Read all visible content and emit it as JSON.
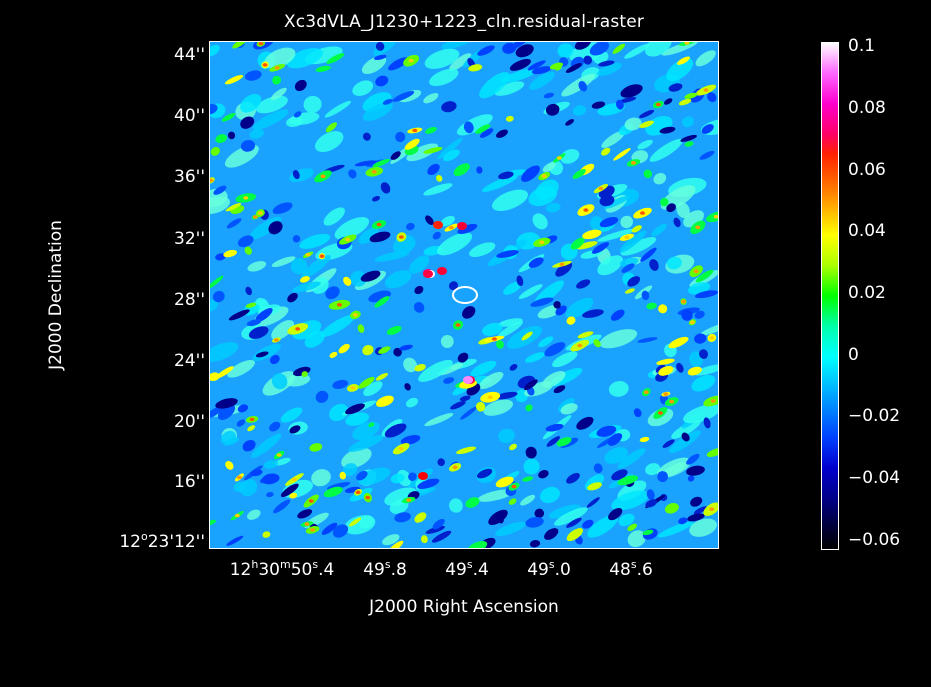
{
  "title": "Xc3dVLA_J1230+1223_cln.residual-raster",
  "x_axis": {
    "label": "J2000 Right Ascension",
    "ticks": [
      {
        "h": "12",
        "hs": "h",
        "m": "30",
        "ms": "m",
        "s": "50",
        "ss": "s",
        "f": ".4"
      },
      {
        "s": "49",
        "ss": "s",
        "f": ".8"
      },
      {
        "s": "49",
        "ss": "s",
        "f": ".4"
      },
      {
        "s": "49",
        "ss": "s",
        "f": ".0"
      },
      {
        "s": "48",
        "ss": "s",
        "f": ".6"
      }
    ]
  },
  "y_axis": {
    "label": "J2000 Declination",
    "ticks": [
      "44''",
      "40''",
      "36''",
      "32''",
      "28''",
      "24''",
      "20''",
      "16''"
    ],
    "origin_tick": {
      "deg": "12",
      "deg_sym": "o",
      "rest": "23'12''"
    }
  },
  "colorbar": {
    "ticks": [
      "0.1",
      "0.08",
      "0.06",
      "0.04",
      "0.02",
      "0",
      "−0.02",
      "−0.04",
      "−0.06"
    ]
  },
  "image": {
    "colormap": "rainbow",
    "background_color": "#19a3ff",
    "beam_marker_color": "#ffffff"
  }
}
